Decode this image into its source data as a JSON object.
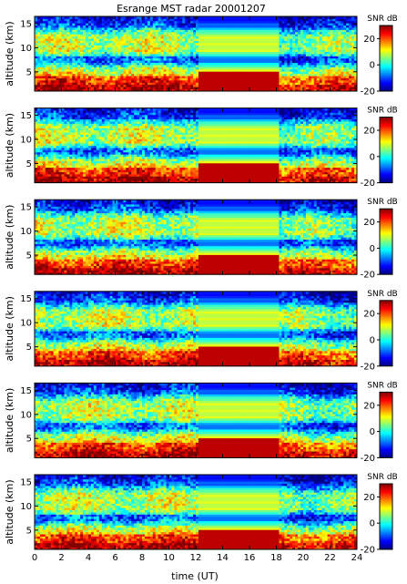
{
  "title": "Esrange MST radar 20001207",
  "chart_data": {
    "type": "heatmap",
    "panel_count": 6,
    "xlabel": "time (UT)",
    "ylabel": "altitude (km)",
    "x_ticks": [
      0,
      2,
      4,
      6,
      8,
      10,
      12,
      14,
      16,
      18,
      20,
      22,
      24
    ],
    "y_ticks": [
      5,
      10,
      15
    ],
    "xlim": [
      0,
      24
    ],
    "ylim": [
      1,
      16.5
    ],
    "colorbar": {
      "label": "SNR dB",
      "ticks": [
        -20,
        0,
        20
      ],
      "range": [
        -20,
        30
      ],
      "colormap": "jet"
    },
    "gap_interval_hours": [
      12.2,
      18.2
    ],
    "profile_description": "SNR highest (20-30 dB) below 5 km, moderate (5-15 dB) at 8-13 km, low (-10 to -20 dB) near 7.5 km and above 14 km"
  },
  "colors": {
    "jet_low": "#00007f",
    "jet_mid": "#7fff7f",
    "jet_high": "#7f0000"
  }
}
